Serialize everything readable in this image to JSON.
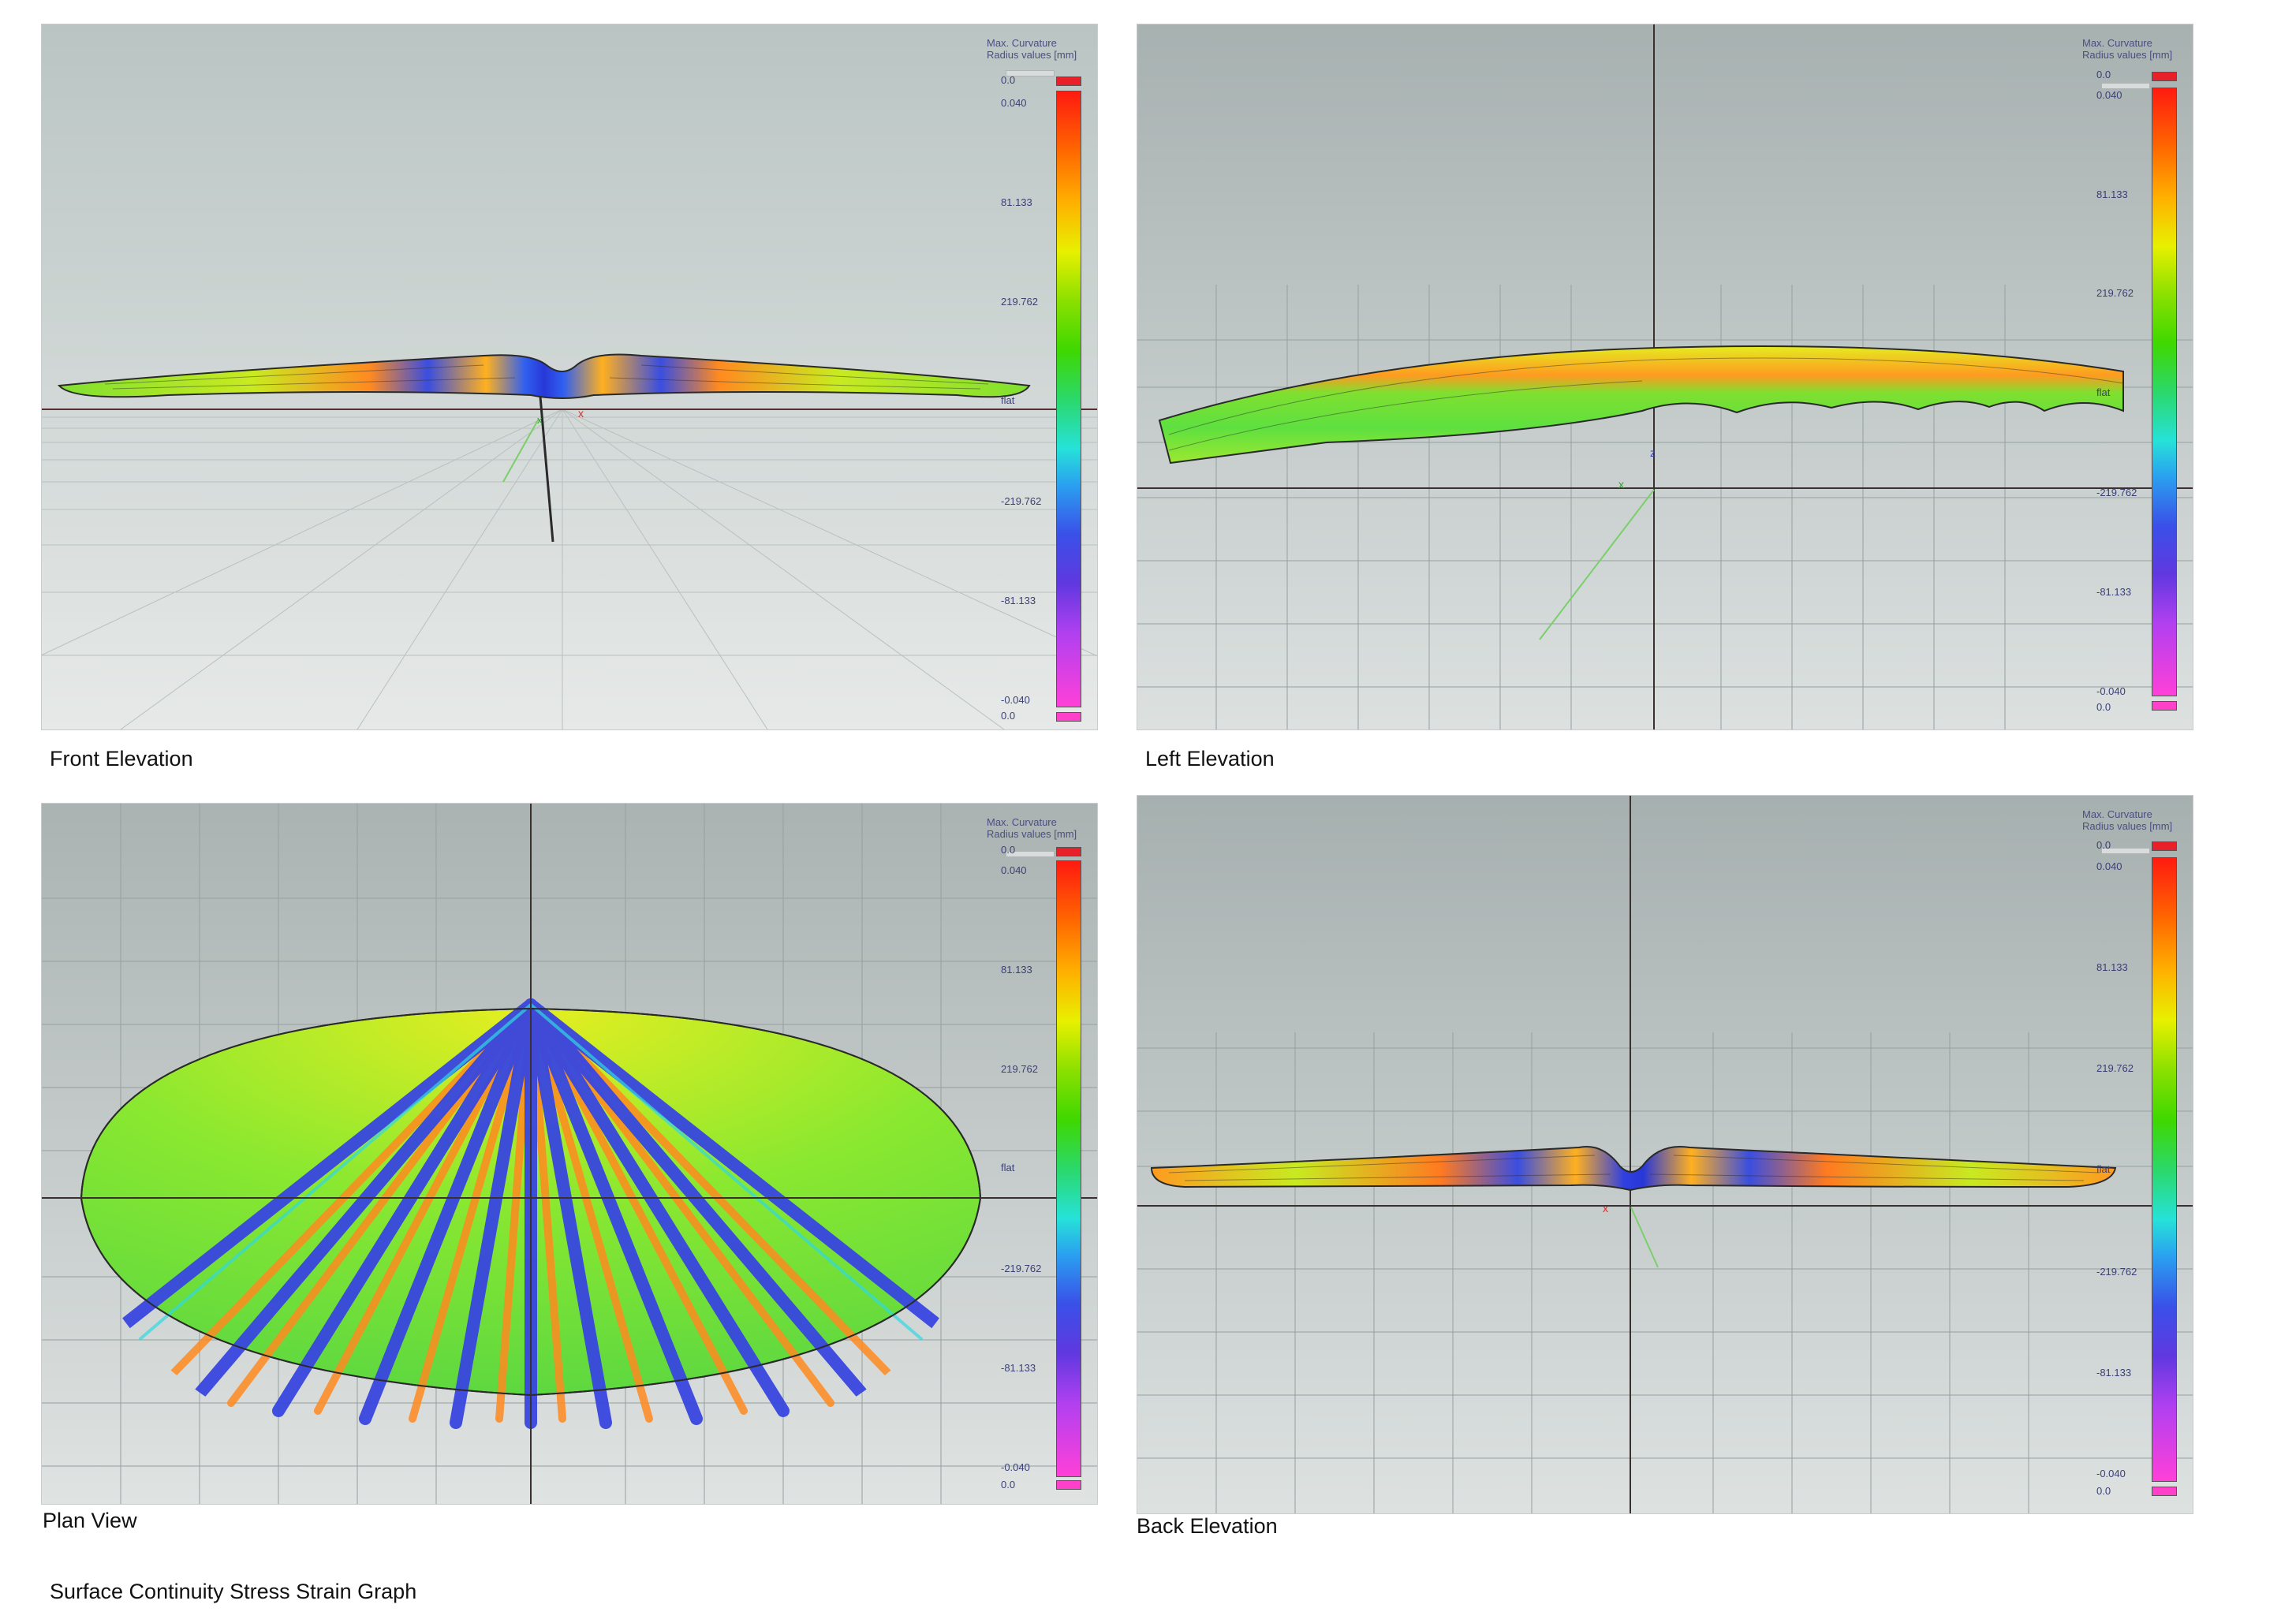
{
  "page_title": "Surface Continuity Stress Strain Graph",
  "legend": {
    "title_line1": "Max. Curvature",
    "title_line2": "Radius values [mm]",
    "labels": [
      "0.0",
      "0.040",
      "81.133",
      "219.762",
      "flat",
      "-219.762",
      "-81.133",
      "-0.040",
      "0.0"
    ]
  },
  "views": [
    {
      "caption": "Front Elevation"
    },
    {
      "caption": "Left Elevation"
    },
    {
      "caption": "Plan View"
    },
    {
      "caption": "Back Elevation"
    }
  ],
  "axis_labels": {
    "x": "x",
    "y": "y",
    "z": "z"
  },
  "colors": {
    "viewport_bg_top": "#a9b2b1",
    "viewport_bg_bottom": "#dfe3e2",
    "grid": "#8f9897",
    "surface_green": "#6ee02a",
    "surface_yellow": "#e6ee10",
    "surface_orange": "#ff7a10",
    "surface_blue": "#3848e0",
    "surface_cyan": "#30d8e0"
  }
}
